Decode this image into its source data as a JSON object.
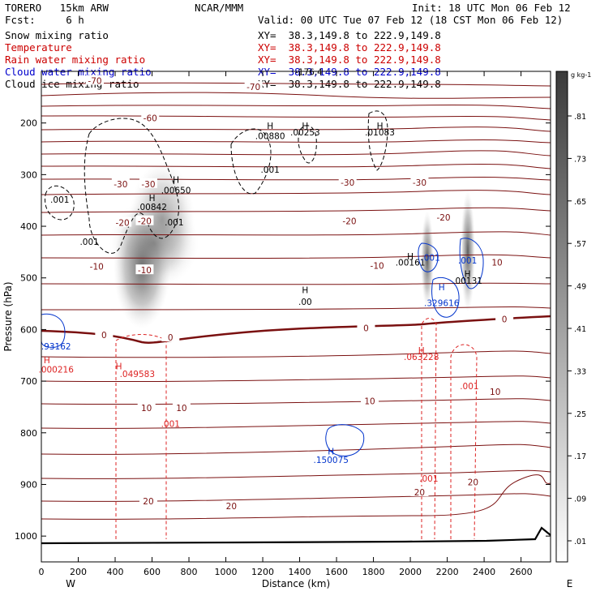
{
  "header": {
    "model": "TORERO   15km ARW",
    "center": "NCAR/MMM",
    "init": "Init: 18 UTC Mon 06 Feb 12",
    "fcst": "Fcst:     6 h",
    "valid": "Valid: 00 UTC Tue 07 Feb 12 (18 CST Mon 06 Feb 12)",
    "fields": [
      {
        "name": "Snow mixing ratio",
        "xy": "XY=  38.3,149.8 to 222.9,149.8",
        "color": "#000000"
      },
      {
        "name": "Temperature",
        "xy": "XY=  38.3,149.8 to 222.9,149.8",
        "color": "#cc0000"
      },
      {
        "name": "Rain water mixing ratio",
        "xy": "XY=  38.3,149.8 to 222.9,149.8",
        "color": "#cc0000"
      },
      {
        "name": "Cloud water mixing ratio",
        "xy": "XY=  38.3,149.8 to 222.9,149.8",
        "color": "#0000cc"
      },
      {
        "name": "Cloud ice mixing ratio",
        "xy": "XY=  38.3,149.8 to 222.9,149.8",
        "color": "#000000"
      }
    ]
  },
  "chart_data": {
    "type": "cross-section",
    "xlabel": "Distance (km)",
    "ylabel": "Pressure (hPa)",
    "xlim": [
      0,
      2760
    ],
    "ylim": [
      1050,
      100
    ],
    "xticks": [
      0,
      200,
      400,
      600,
      800,
      1000,
      1200,
      1400,
      1600,
      1800,
      2000,
      2200,
      2400,
      2600
    ],
    "yticks": [
      200,
      300,
      400,
      500,
      600,
      700,
      800,
      900,
      1000
    ],
    "west_label": "W",
    "east_label": "E",
    "colorbar": {
      "unit": "g kg-1",
      "labels": [
        ".81",
        ".73",
        ".65",
        ".57",
        ".49",
        ".41",
        ".33",
        ".25",
        ".17",
        ".09",
        ".01"
      ]
    },
    "temperature_isotherms": [
      {
        "label": "-70",
        "x": 1150,
        "p": 130
      },
      {
        "label": "-70",
        "x": 290,
        "p": 118
      },
      {
        "label": "-60",
        "x": 590,
        "p": 190
      },
      {
        "label": "-30",
        "x": 580,
        "p": 318
      },
      {
        "label": "-30",
        "x": 430,
        "p": 318
      },
      {
        "label": "-30",
        "x": 1660,
        "p": 315
      },
      {
        "label": "-30",
        "x": 2050,
        "p": 315
      },
      {
        "label": "-20",
        "x": 440,
        "p": 393
      },
      {
        "label": "-20",
        "x": 560,
        "p": 390
      },
      {
        "label": "-20",
        "x": 1670,
        "p": 390
      },
      {
        "label": "-20",
        "x": 2180,
        "p": 383
      },
      {
        "label": "-10",
        "x": 300,
        "p": 478
      },
      {
        "label": "-10",
        "x": 560,
        "p": 485
      },
      {
        "label": "-10",
        "x": 1820,
        "p": 476
      },
      {
        "label": "10",
        "x": 2470,
        "p": 470
      },
      {
        "label": "0",
        "x": 340,
        "p": 610
      },
      {
        "label": "0",
        "x": 700,
        "p": 615
      },
      {
        "label": "0",
        "x": 1760,
        "p": 597
      },
      {
        "label": "0",
        "x": 2510,
        "p": 580
      },
      {
        "label": "10",
        "x": 570,
        "p": 752
      },
      {
        "label": "10",
        "x": 760,
        "p": 752
      },
      {
        "label": "10",
        "x": 1780,
        "p": 738
      },
      {
        "label": "10",
        "x": 2460,
        "p": 720
      },
      {
        "label": "20",
        "x": 580,
        "p": 932
      },
      {
        "label": "20",
        "x": 1030,
        "p": 942
      },
      {
        "label": "20",
        "x": 2050,
        "p": 915
      },
      {
        "label": "20",
        "x": 2340,
        "p": 895
      }
    ],
    "annotations": [
      {
        "text": "H",
        "x": 730,
        "p": 310,
        "color": "black"
      },
      {
        "text": ".00650",
        "x": 730,
        "p": 330,
        "color": "black"
      },
      {
        "text": "H",
        "x": 600,
        "p": 345,
        "color": "black"
      },
      {
        "text": ".00842",
        "x": 600,
        "p": 362,
        "color": "black"
      },
      {
        "text": ".001",
        "x": 100,
        "p": 348,
        "color": "black"
      },
      {
        "text": ".001",
        "x": 260,
        "p": 430,
        "color": "black"
      },
      {
        "text": ".001",
        "x": 720,
        "p": 392,
        "color": "black"
      },
      {
        "text": "H",
        "x": 1240,
        "p": 205,
        "color": "black"
      },
      {
        "text": ".00880",
        "x": 1240,
        "p": 225,
        "color": "black"
      },
      {
        "text": ".001",
        "x": 1240,
        "p": 290,
        "color": "black"
      },
      {
        "text": "H",
        "x": 1430,
        "p": 205,
        "color": "black"
      },
      {
        "text": ".00253",
        "x": 1430,
        "p": 218,
        "color": "black"
      },
      {
        "text": "H",
        "x": 1835,
        "p": 205,
        "color": "black"
      },
      {
        "text": ".01083",
        "x": 1835,
        "p": 218,
        "color": "black"
      },
      {
        "text": "H",
        "x": 2000,
        "p": 458,
        "color": "black"
      },
      {
        "text": ".00161",
        "x": 2000,
        "p": 470,
        "color": "black"
      },
      {
        "text": "H",
        "x": 2310,
        "p": 492,
        "color": "black"
      },
      {
        "text": ".00131",
        "x": 2310,
        "p": 505,
        "color": "black"
      },
      {
        "text": "H",
        "x": 1430,
        "p": 523,
        "color": "black"
      },
      {
        "text": ".00",
        "x": 1430,
        "p": 546,
        "color": "black"
      },
      {
        "text": ".001",
        "x": 2110,
        "p": 460,
        "color": "blue"
      },
      {
        "text": ".001",
        "x": 2310,
        "p": 466,
        "color": "blue"
      },
      {
        "text": "H",
        "x": 2170,
        "p": 518,
        "color": "blue"
      },
      {
        "text": ".329616",
        "x": 2170,
        "p": 548,
        "color": "blue"
      },
      {
        "text": "H",
        "x": 1570,
        "p": 836,
        "color": "blue"
      },
      {
        "text": ".150075",
        "x": 1570,
        "p": 852,
        "color": "blue"
      },
      {
        "text": ".93162",
        "x": 80,
        "p": 632,
        "color": "blue"
      },
      {
        "text": "H",
        "x": 30,
        "p": 659,
        "color": "red"
      },
      {
        "text": ".000216",
        "x": 80,
        "p": 677,
        "color": "red"
      },
      {
        "text": "H",
        "x": 420,
        "p": 671,
        "color": "red"
      },
      {
        "text": ".049583",
        "x": 520,
        "p": 686,
        "color": "red"
      },
      {
        "text": ".001",
        "x": 700,
        "p": 782,
        "color": "red"
      },
      {
        "text": "H",
        "x": 2060,
        "p": 640,
        "color": "red"
      },
      {
        "text": ".063228",
        "x": 2060,
        "p": 653,
        "color": "red"
      },
      {
        "text": ".001",
        "x": 2320,
        "p": 709,
        "color": "red"
      },
      {
        "text": ".001",
        "x": 2100,
        "p": 888,
        "color": "red"
      },
      {
        "text": "-176.4",
        "x": 1450,
        "p": 101,
        "color": "black"
      }
    ]
  }
}
